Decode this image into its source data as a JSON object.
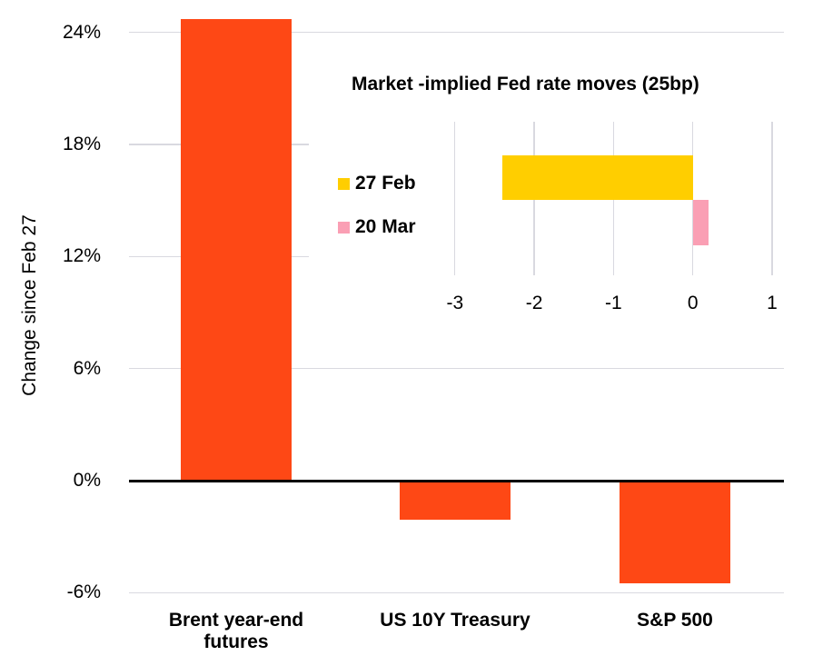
{
  "chart_data": [
    {
      "id": "main-bar-chart",
      "type": "bar",
      "title": "",
      "ylabel": "Change since Feb 27",
      "categories": [
        "Brent year-end futures",
        "US 10Y Treasury",
        "S&P 500"
      ],
      "category_lines": [
        [
          "Brent year-end",
          "futures"
        ],
        [
          "US 10Y Treasury"
        ],
        [
          "S&P 500"
        ]
      ],
      "values": [
        24.7,
        -2.1,
        -5.5
      ],
      "value_unit": "percent",
      "yticks": [
        24,
        18,
        12,
        6,
        0,
        -6
      ],
      "ytick_labels": [
        "24%",
        "18%",
        "12%",
        "6%",
        "0%",
        "-6%"
      ],
      "ylim": [
        -7.5,
        25.6
      ],
      "grid": true,
      "legend_position": "none",
      "colors": {
        "bar": "#FE4815",
        "grid": "#D9D9E0",
        "zero_line": "#000000",
        "text": "#000000"
      }
    },
    {
      "id": "inset-fed-rate-chart",
      "type": "bar",
      "orientation": "horizontal",
      "title": "Market -implied Fed rate moves (25bp)",
      "series": [
        {
          "name": "27 Feb",
          "value": -2.4,
          "color": "#FFCE00"
        },
        {
          "name": "20 Mar",
          "value": 0.2,
          "color": "#FA9FB4"
        }
      ],
      "xticks": [
        -3,
        -2,
        -1,
        0,
        1
      ],
      "xtick_labels": [
        "-3",
        "-2",
        "-1",
        "0",
        "1"
      ],
      "xlim": [
        -3.5,
        1.5
      ],
      "grid": true,
      "legend_position": "left",
      "colors": {
        "grid": "#D9D9E0",
        "text": "#000000"
      }
    }
  ]
}
